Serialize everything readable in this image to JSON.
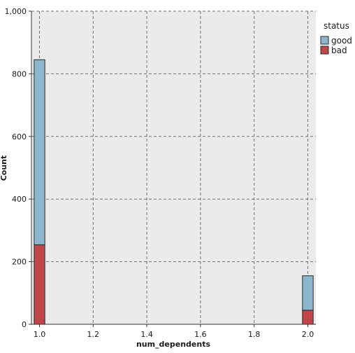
{
  "chart_data": {
    "type": "bar",
    "stacked": true,
    "xlabel": "num_dependents",
    "ylabel": "Count",
    "x_ticks": [
      "1.0",
      "1.2",
      "1.4",
      "1.6",
      "1.8",
      "2.0"
    ],
    "y_ticks": [
      "0",
      "200",
      "400",
      "600",
      "800",
      "1,000"
    ],
    "xlim": [
      0.97,
      2.03
    ],
    "ylim": [
      0,
      1000
    ],
    "bin_width": 0.04,
    "grid": true,
    "legend_title": "status",
    "legend_position": "top-right, outside plot",
    "categories": [
      "1.0",
      "2.0"
    ],
    "x": [
      1.0,
      2.0
    ],
    "series": [
      {
        "name": "good",
        "color": "#8bb6cc",
        "values": [
          591,
          110
        ]
      },
      {
        "name": "bad",
        "color": "#c0464a",
        "values": [
          254,
          45
        ]
      }
    ]
  }
}
